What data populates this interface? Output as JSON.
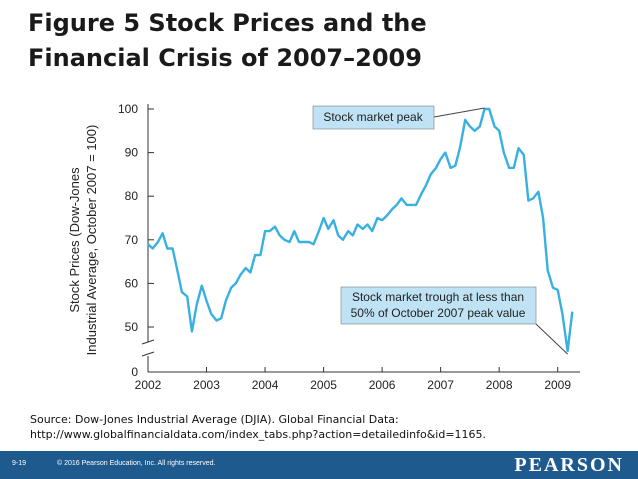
{
  "title_lines": [
    "Figure 5 Stock Prices and the",
    "Financial Crisis of 2007–2009"
  ],
  "source_lines": [
    "Source: Dow-Jones Industrial Average (DJIA). Global Financial Data:",
    "http://www.globalfinancialdata.com/index_tabs.php?action=detailedinfo&id=1165."
  ],
  "footer": {
    "slide_number": "9-19",
    "copyright": "© 2016 Pearson Education, Inc. All rights reserved.",
    "logo": "PEARSON"
  },
  "colors": {
    "line": "#38b0e0",
    "callout_bg": "#bfe3f5",
    "footer_bg": "#1f5a8f",
    "axis": "#333333"
  },
  "chart_data": {
    "type": "line",
    "ylabel_lines": [
      "Stock Prices (Dow-Jones",
      "Industrial Average, October 2007 = 100)"
    ],
    "xlim": [
      2002,
      2009.33
    ],
    "ylim": [
      40,
      100
    ],
    "y_axis_break": true,
    "yticks": [
      0,
      50,
      60,
      70,
      80,
      90,
      100
    ],
    "xticks": [
      "2002",
      "2003",
      "2004",
      "2005",
      "2006",
      "2007",
      "2008",
      "2009"
    ],
    "annotations": [
      {
        "text": "Stock market peak",
        "target": [
          2007.75,
          100
        ]
      },
      {
        "text": "Stock market trough at less than 50% of October 2007 peak value",
        "lines": [
          "Stock market trough at less than",
          "50% of October 2007 peak value"
        ],
        "target": [
          2009.17,
          44
        ]
      }
    ],
    "series": [
      {
        "name": "DJIA (October 2007 = 100)",
        "x": [
          2002.0,
          2002.08,
          2002.17,
          2002.25,
          2002.33,
          2002.42,
          2002.5,
          2002.58,
          2002.67,
          2002.75,
          2002.83,
          2002.92,
          2003.0,
          2003.08,
          2003.17,
          2003.25,
          2003.33,
          2003.42,
          2003.5,
          2003.58,
          2003.67,
          2003.75,
          2003.83,
          2003.92,
          2004.0,
          2004.08,
          2004.17,
          2004.25,
          2004.33,
          2004.42,
          2004.5,
          2004.58,
          2004.67,
          2004.75,
          2004.83,
          2004.92,
          2005.0,
          2005.08,
          2005.17,
          2005.25,
          2005.33,
          2005.42,
          2005.5,
          2005.58,
          2005.67,
          2005.75,
          2005.83,
          2005.92,
          2006.0,
          2006.08,
          2006.17,
          2006.25,
          2006.33,
          2006.42,
          2006.5,
          2006.58,
          2006.67,
          2006.75,
          2006.83,
          2006.92,
          2007.0,
          2007.08,
          2007.17,
          2007.25,
          2007.33,
          2007.42,
          2007.5,
          2007.58,
          2007.67,
          2007.75,
          2007.83,
          2007.92,
          2008.0,
          2008.08,
          2008.17,
          2008.25,
          2008.33,
          2008.42,
          2008.5,
          2008.58,
          2008.67,
          2008.75,
          2008.83,
          2008.92,
          2009.0,
          2009.08,
          2009.17,
          2009.25
        ],
        "values": [
          69,
          68,
          69.5,
          71.5,
          68,
          68,
          63,
          58,
          57,
          49,
          55,
          59.5,
          56,
          53,
          51.5,
          52,
          56,
          59,
          60,
          62,
          63.5,
          62.5,
          66.5,
          66.5,
          72,
          72,
          73,
          71,
          70,
          69.5,
          72,
          69.5,
          69.5,
          69.5,
          69,
          72,
          75,
          72.5,
          74.5,
          71,
          70,
          72,
          71,
          73.5,
          72.5,
          73.5,
          72,
          75,
          74.5,
          75.5,
          77,
          78,
          79.5,
          78,
          78,
          78,
          80.5,
          82.5,
          85,
          86.5,
          88.5,
          90,
          86.5,
          87,
          91,
          97.5,
          96,
          95,
          96,
          100,
          100,
          96,
          95,
          90,
          86.5,
          86.5,
          91,
          89.5,
          79,
          79.5,
          81,
          75,
          63,
          59,
          58.5,
          53,
          44.5,
          53.5
        ]
      }
    ]
  }
}
